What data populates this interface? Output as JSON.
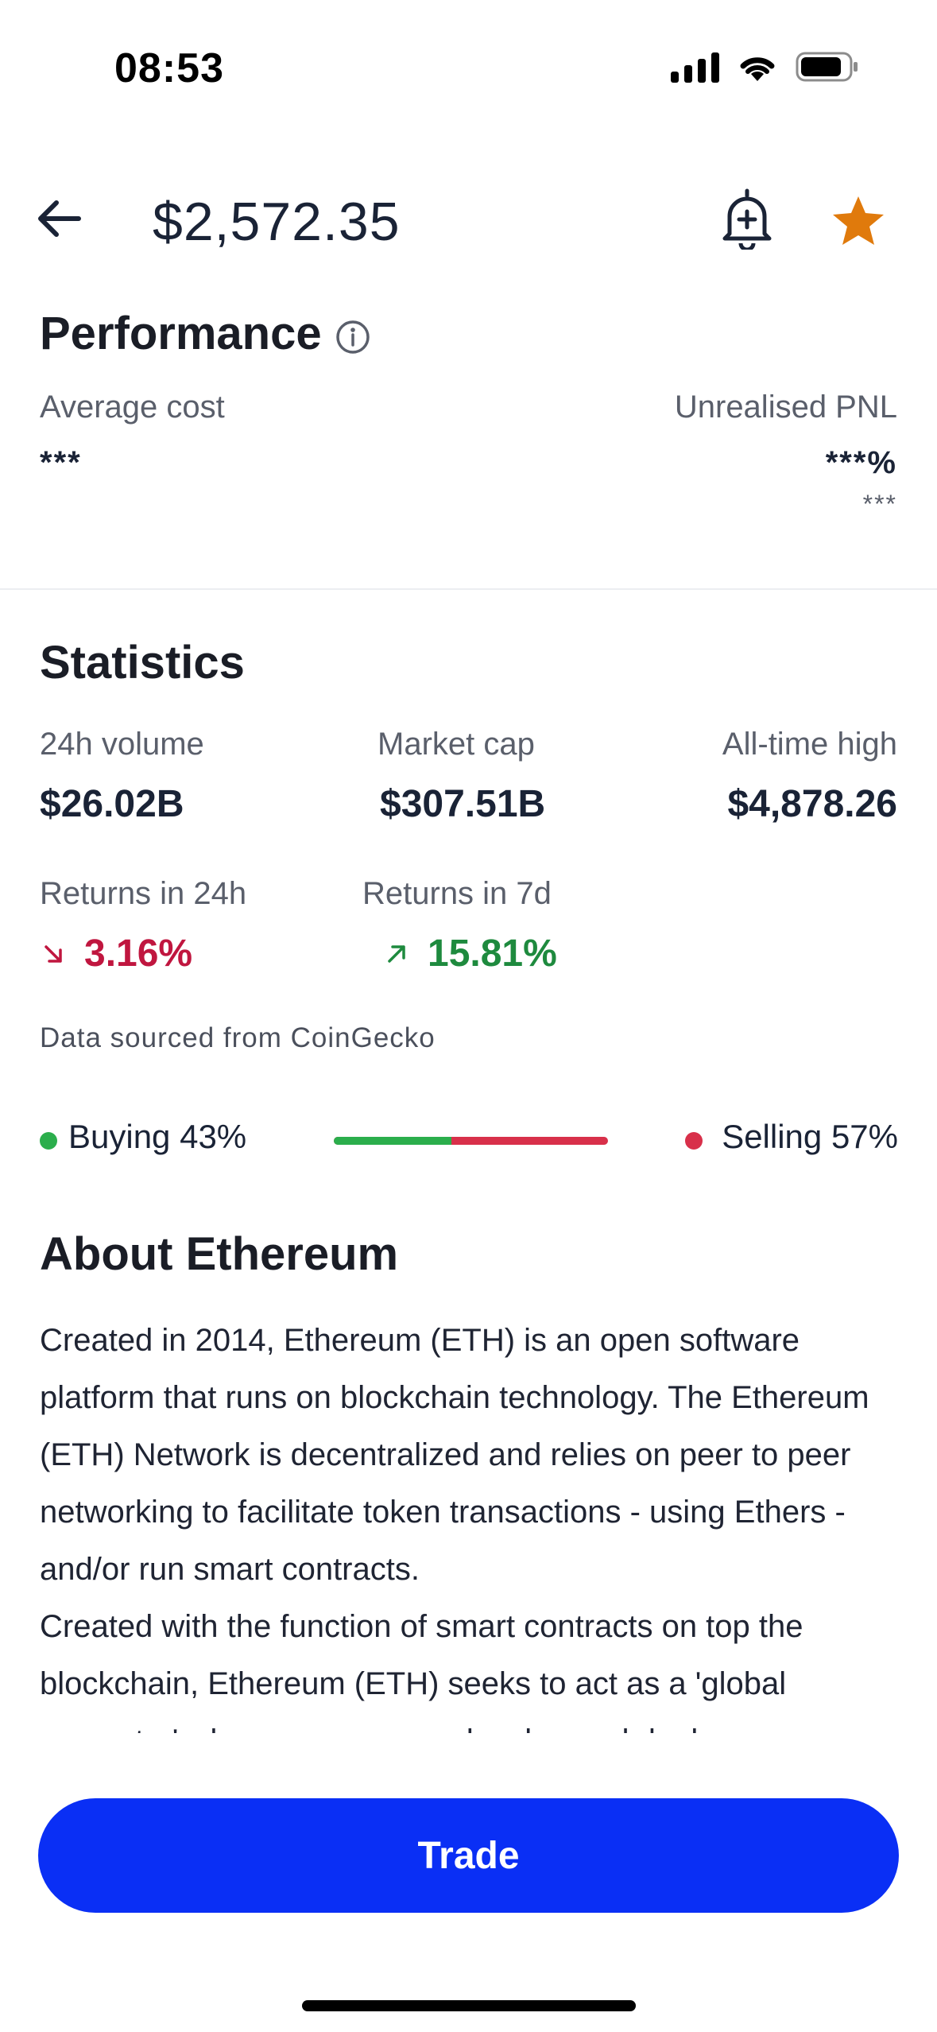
{
  "status_bar": {
    "time": "08:53"
  },
  "header": {
    "price": "$2,572.35"
  },
  "performance": {
    "title": "Performance",
    "average_cost_label": "Average cost",
    "average_cost_value": "***",
    "unrealised_pnl_label": "Unrealised PNL",
    "unrealised_pnl_percent": "***%",
    "unrealised_pnl_value": "***"
  },
  "statistics": {
    "title": "Statistics",
    "volume_label": "24h volume",
    "volume_value": "$26.02B",
    "market_cap_label": "Market cap",
    "market_cap_value": "$307.51B",
    "ath_label": "All-time high",
    "ath_value": "$4,878.26",
    "returns_24h_label": "Returns in 24h",
    "returns_24h_value": "3.16%",
    "returns_7d_label": "Returns in 7d",
    "returns_7d_value": "15.81%",
    "source": "Data sourced from CoinGecko"
  },
  "sentiment": {
    "buying_label": "Buying 43%",
    "selling_label": "Selling 57%",
    "buying_fraction": 0.43
  },
  "about": {
    "title": "About Ethereum",
    "paragraph_1": "Created in 2014, Ethereum (ETH) is an open software platform that runs on blockchain technology. The Ethereum (ETH) Network is decentralized and relies on peer to peer networking to facilitate token transactions - using Ethers - and/or run smart contracts.",
    "paragraph_2": "Created with the function of smart contracts on top the blockchain, Ethereum (ETH) seeks to act as a 'global computer' where anyone can develop and deploy"
  },
  "actions": {
    "trade_label": "Trade"
  },
  "colors": {
    "accent": "#0a2ff5",
    "favorite": "#e07a0c",
    "positive": "#1e8a3e",
    "negative": "#c0163f"
  }
}
